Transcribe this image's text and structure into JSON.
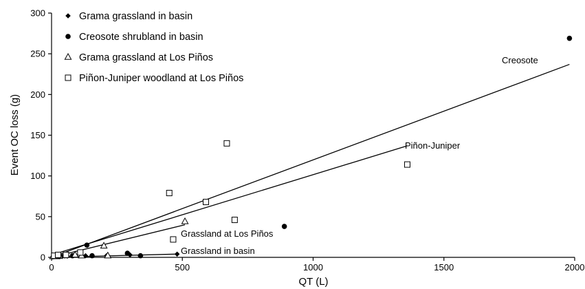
{
  "chart_data": {
    "type": "scatter",
    "title": "",
    "xlabel": "QT (L)",
    "ylabel": "Event OC loss (g)",
    "xlim": [
      0,
      2000
    ],
    "ylim": [
      0,
      300
    ],
    "x_ticks": [
      0,
      500,
      1000,
      1500,
      2000
    ],
    "y_ticks": [
      0,
      50,
      100,
      150,
      200,
      250,
      300
    ],
    "grid": false,
    "legend_position": "top-left",
    "series": [
      {
        "name": "Grama grassland in basin",
        "marker": "diamond",
        "points": [
          [
            5,
            0.5
          ],
          [
            20,
            1
          ],
          [
            40,
            1
          ],
          [
            60,
            1.5
          ],
          [
            130,
            2
          ],
          [
            210,
            2
          ],
          [
            300,
            3
          ],
          [
            480,
            4
          ]
        ]
      },
      {
        "name": "Creosote shrubland in basin",
        "marker": "circle",
        "points": [
          [
            10,
            1
          ],
          [
            30,
            1
          ],
          [
            50,
            2
          ],
          [
            80,
            2
          ],
          [
            135,
            15
          ],
          [
            155,
            2
          ],
          [
            290,
            5
          ],
          [
            340,
            2
          ],
          [
            890,
            38
          ],
          [
            1980,
            269
          ]
        ]
      },
      {
        "name": "Grama grassland at Los Piños",
        "marker": "triangle",
        "points": [
          [
            5,
            1
          ],
          [
            15,
            1
          ],
          [
            30,
            2
          ],
          [
            90,
            3
          ],
          [
            115,
            2
          ],
          [
            200,
            14
          ],
          [
            215,
            2
          ],
          [
            510,
            44
          ]
        ]
      },
      {
        "name": "Piñon-Juniper woodland at Los Piños",
        "marker": "square",
        "points": [
          [
            10,
            2
          ],
          [
            25,
            3
          ],
          [
            55,
            3
          ],
          [
            110,
            6
          ],
          [
            450,
            79
          ],
          [
            465,
            22
          ],
          [
            590,
            68
          ],
          [
            670,
            140
          ],
          [
            700,
            46
          ],
          [
            1360,
            114
          ]
        ]
      }
    ],
    "fit_lines": [
      {
        "label": "Creosote",
        "from": [
          0,
          0
        ],
        "to": [
          1980,
          237
        ]
      },
      {
        "label": "Piñon-Juniper",
        "from": [
          0,
          3
        ],
        "to": [
          1360,
          137
        ]
      },
      {
        "label": "Grassland at Los Piños",
        "from": [
          0,
          0
        ],
        "to": [
          510,
          40
        ]
      },
      {
        "label": "Grassland in basin",
        "from": [
          0,
          0
        ],
        "to": [
          480,
          4
        ]
      }
    ]
  }
}
